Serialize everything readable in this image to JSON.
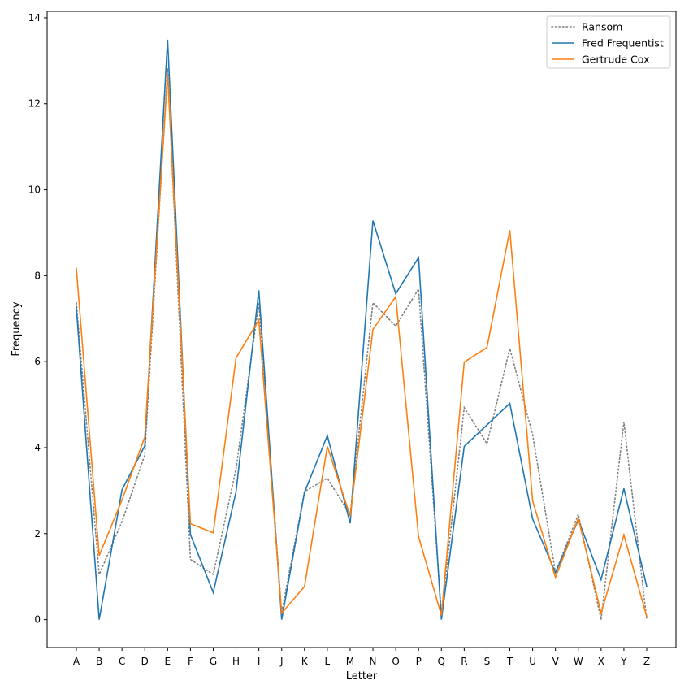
{
  "chart_data": {
    "type": "line",
    "categories": [
      "A",
      "B",
      "C",
      "D",
      "E",
      "F",
      "G",
      "H",
      "I",
      "J",
      "K",
      "L",
      "M",
      "N",
      "O",
      "P",
      "Q",
      "R",
      "S",
      "T",
      "U",
      "V",
      "W",
      "X",
      "Y",
      "Z"
    ],
    "xlabel": "Letter",
    "ylabel": "Frequency",
    "ylim": [
      -0.65,
      14.15
    ],
    "yticks": [
      0,
      2,
      4,
      6,
      8,
      10,
      12,
      14
    ],
    "grid": false,
    "legend": "top-right",
    "series": [
      {
        "name": "Ransom",
        "color": "#808080",
        "style": "dotted",
        "values": [
          7.37,
          1.05,
          2.28,
          3.83,
          12.82,
          1.4,
          1.05,
          3.51,
          7.37,
          0.16,
          2.98,
          3.29,
          2.44,
          7.37,
          6.83,
          7.69,
          0.1,
          4.93,
          4.09,
          6.31,
          4.3,
          1.09,
          2.45,
          0.0,
          4.6,
          0.0
        ]
      },
      {
        "name": "Fred Frequentist",
        "color": "#1f77b4",
        "style": "solid",
        "values": [
          7.26,
          0.0,
          3.02,
          4.04,
          13.49,
          1.98,
          0.63,
          2.98,
          7.66,
          0.0,
          2.96,
          4.28,
          2.24,
          9.28,
          7.58,
          8.42,
          0.0,
          4.03,
          4.53,
          5.03,
          2.34,
          1.09,
          2.32,
          0.93,
          3.05,
          0.77
        ]
      },
      {
        "name": "Gertrude Cox",
        "color": "#ff7f0e",
        "style": "solid",
        "values": [
          8.17,
          1.49,
          2.78,
          4.25,
          12.7,
          2.23,
          2.02,
          6.09,
          6.97,
          0.15,
          0.77,
          4.03,
          2.41,
          6.75,
          7.51,
          1.93,
          0.1,
          5.99,
          6.33,
          9.06,
          2.76,
          0.98,
          2.36,
          0.15,
          1.97,
          0.07
        ]
      }
    ]
  }
}
